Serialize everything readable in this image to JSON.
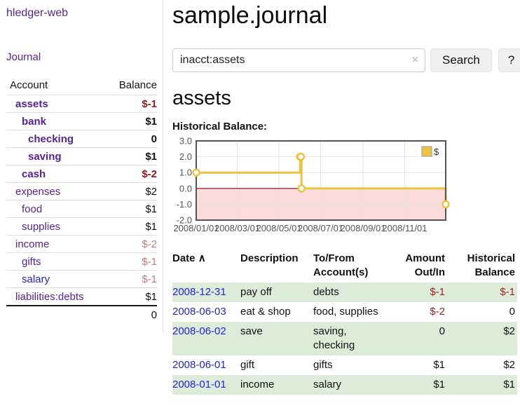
{
  "app": {
    "brand": "hledger-web"
  },
  "sidebar": {
    "journal_link": "Journal",
    "table": {
      "headers": {
        "account": "Account",
        "balance": "Balance"
      },
      "rows": [
        {
          "name": "assets",
          "balance": "$-1",
          "indent": 0,
          "bold": true,
          "value_class": "neg"
        },
        {
          "name": "bank",
          "balance": "$1",
          "indent": 1,
          "bold": true,
          "value_class": ""
        },
        {
          "name": "checking",
          "balance": "0",
          "indent": 2,
          "bold": true,
          "value_class": ""
        },
        {
          "name": "saving",
          "balance": "$1",
          "indent": 2,
          "bold": true,
          "value_class": ""
        },
        {
          "name": "cash",
          "balance": "$-2",
          "indent": 1,
          "bold": true,
          "value_class": "neg"
        },
        {
          "name": "expenses",
          "balance": "$2",
          "indent": 0,
          "bold": false,
          "value_class": ""
        },
        {
          "name": "food",
          "balance": "$1",
          "indent": 1,
          "bold": false,
          "value_class": ""
        },
        {
          "name": "supplies",
          "balance": "$1",
          "indent": 1,
          "bold": false,
          "value_class": ""
        },
        {
          "name": "income",
          "balance": "$-2",
          "indent": 0,
          "bold": false,
          "value_class": "neg-faded"
        },
        {
          "name": "gifts",
          "balance": "$-1",
          "indent": 1,
          "bold": false,
          "value_class": "neg-faded"
        },
        {
          "name": "salary",
          "balance": "$-1",
          "indent": 1,
          "bold": false,
          "value_class": "neg-faded",
          "link_color": "#2323dd"
        },
        {
          "name": "liabilities:debts",
          "balance": "$1",
          "indent": 0,
          "bold": false,
          "value_class": ""
        }
      ],
      "total": "0"
    }
  },
  "main": {
    "title": "sample.journal",
    "search": {
      "value": "inacct:assets",
      "clear_icon": "×",
      "button": "Search",
      "help_button": "?"
    },
    "account_heading": "assets",
    "chart_heading": "Historical Balance:",
    "register": {
      "headers": [
        "Date",
        "Description",
        "To/From Account(s)",
        "Amount Out/In",
        "Historical Balance"
      ],
      "sort_arrow": "∧",
      "rows": [
        {
          "date": "2008-12-31",
          "description": "pay off",
          "accounts": "debts",
          "amount": "$-1",
          "amount_neg": true,
          "balance": "$-1",
          "balance_neg": true,
          "shaded": true
        },
        {
          "date": "2008-06-03",
          "description": "eat & shop",
          "accounts": "food, supplies",
          "amount": "$-2",
          "amount_neg": true,
          "balance": "0",
          "balance_neg": false,
          "shaded": false
        },
        {
          "date": "2008-06-02",
          "description": "save",
          "accounts": "saving, checking",
          "amount": "0",
          "amount_neg": false,
          "balance": "$2",
          "balance_neg": false,
          "shaded": true
        },
        {
          "date": "2008-06-01",
          "description": "gift",
          "accounts": "gifts",
          "amount": "$1",
          "amount_neg": false,
          "balance": "$2",
          "balance_neg": false,
          "shaded": false
        },
        {
          "date": "2008-01-01",
          "description": "income",
          "accounts": "salary",
          "amount": "$1",
          "amount_neg": false,
          "balance": "$1",
          "balance_neg": false,
          "shaded": true
        }
      ]
    }
  },
  "chart_data": {
    "type": "line",
    "step": true,
    "title": "Historical Balance:",
    "series": [
      {
        "name": "$",
        "color": "#edc240",
        "points": [
          [
            "2008-01-01",
            1
          ],
          [
            "2008-06-01",
            2
          ],
          [
            "2008-06-02",
            2
          ],
          [
            "2008-06-03",
            0
          ],
          [
            "2008-12-31",
            -1
          ]
        ]
      }
    ],
    "xlim": [
      "2008-01-01",
      "2008-12-31"
    ],
    "ylim": [
      -2,
      3
    ],
    "y_ticks": [
      3.0,
      2.0,
      1.0,
      0.0,
      -1.0,
      -2.0
    ],
    "x_ticks": [
      {
        "date": "2008-01-01",
        "label": "2008/01/01"
      },
      {
        "date": "2008-03-01",
        "label": "2008/03/01"
      },
      {
        "date": "2008-05-01",
        "label": "2008/05/01"
      },
      {
        "date": "2008-07-01",
        "label": "2008/07/01"
      },
      {
        "date": "2008-09-01",
        "label": "2008/09/01"
      },
      {
        "date": "2008-11-01",
        "label": "2008/11/01"
      }
    ],
    "grid": true,
    "grid_color": "#e2e2e2",
    "border_color": "#545454",
    "negative_fill": "#fbdbdb",
    "zero_line_color": "#8b0000",
    "tick_label_color": "#545454",
    "legend": {
      "label": "$",
      "position": "top-right"
    }
  },
  "colors": {
    "accent_purple": "#55229b",
    "link_blue": "#2323dd",
    "negative_red": "#8f1b1b",
    "negative_faded": "#c17d7d",
    "register_negative": "#9e2222",
    "row_green": "#ddecd8",
    "series_gold": "#edc240",
    "negative_area_pink": "#fbdbdb"
  }
}
